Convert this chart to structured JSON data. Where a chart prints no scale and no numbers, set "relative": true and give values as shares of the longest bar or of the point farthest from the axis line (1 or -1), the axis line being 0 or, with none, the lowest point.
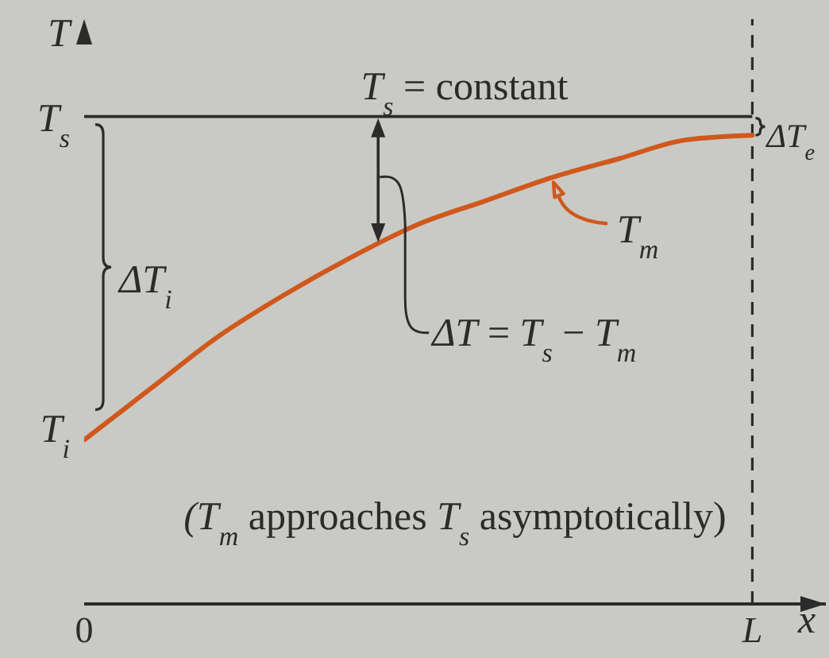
{
  "chart_data": {
    "type": "line",
    "xlabel": "x",
    "ylabel": "T",
    "relative": true,
    "categories": [
      "0",
      null,
      null,
      null,
      null,
      null,
      null,
      null,
      null,
      null,
      "L"
    ],
    "series": [
      {
        "name": "T$_{m}$",
        "color": "#d0581c",
        "values": [
          0.35,
          0.46,
          0.57,
          0.66,
          0.74,
          0.81,
          0.86,
          0.91,
          0.95,
          0.99,
          1
        ]
      }
    ],
    "ref_lines": [
      {
        "axis": "y",
        "value": 1.04,
        "label": "T$_{s}$ = constant",
        "color": "#2b2b2b"
      },
      {
        "axis": "x",
        "value": "L",
        "line_style": "dashed",
        "color": "#2b2b2b"
      }
    ],
    "annotations": [
      "T$_{s}$",
      {
        "text": "T$_{i}$",
        "x": "0",
        "y": 0.35
      },
      "ΔT$_{i}$",
      "ΔT$_{e}$",
      "ΔT = T$_{s}$ − T$_{m}$",
      "(T$_{m}$ approaches T$_{s}$ asymptotically)"
    ],
    "marker": "none",
    "line_style": "solid"
  }
}
